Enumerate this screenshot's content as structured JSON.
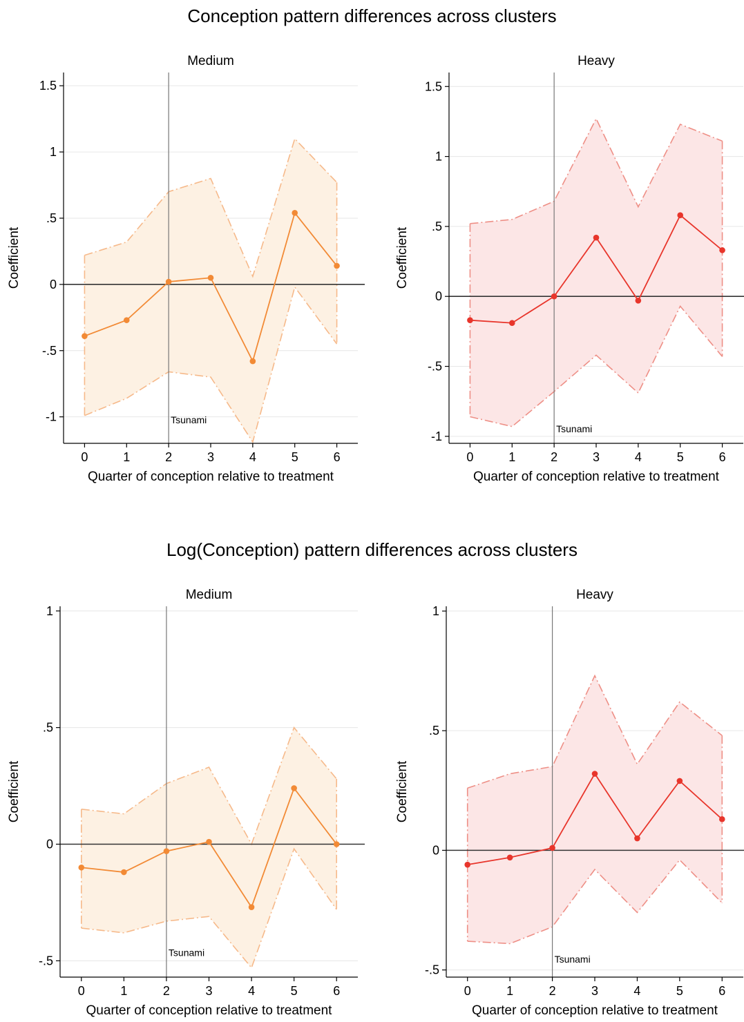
{
  "titles": {
    "top": "Conception pattern differences across clusters",
    "bottom": "Log(Conception) pattern differences across clusters"
  },
  "colors": {
    "medium_line": "#f28a35",
    "medium_fill": "#fdf1e3",
    "medium_bound": "#f6b98a",
    "heavy_line": "#e8352b",
    "heavy_fill": "#fce6e6",
    "heavy_bound": "#ee8f86",
    "zero_line": "#333333",
    "event_line": "#777777",
    "grid": "#e6e6e6"
  },
  "chart_data": [
    {
      "type": "line",
      "title": "Medium",
      "xlabel": "Quarter of conception relative to treatment",
      "ylabel": "Coefficient",
      "x": [
        0,
        1,
        2,
        3,
        4,
        5,
        6
      ],
      "y": [
        -0.39,
        -0.27,
        0.02,
        0.05,
        -0.58,
        0.54,
        0.14
      ],
      "ci_lower": [
        -0.99,
        -0.86,
        -0.66,
        -0.7,
        -1.19,
        -0.02,
        -0.45
      ],
      "ci_upper": [
        0.22,
        0.32,
        0.7,
        0.8,
        0.06,
        1.1,
        0.77
      ],
      "ylim": [
        -1.2,
        1.6
      ],
      "xlim": [
        -0.5,
        6.5
      ],
      "yticks": [
        -1,
        -0.5,
        0,
        0.5,
        1,
        1.5
      ],
      "ytick_labels": [
        "-1",
        "-.5",
        "0",
        ".5",
        "1",
        "1.5"
      ],
      "xtick_labels": [
        "0",
        "1",
        "2",
        "3",
        "4",
        "5",
        "6"
      ],
      "event_x": 2,
      "event_label": "Tsunami",
      "event_label_y": -1.05,
      "color_key": "medium",
      "grid": true
    },
    {
      "type": "line",
      "title": "Heavy",
      "xlabel": "Quarter of conception relative to treatment",
      "ylabel": "Coefficient",
      "x": [
        0,
        1,
        2,
        3,
        4,
        5,
        6
      ],
      "y": [
        -0.17,
        -0.19,
        0.0,
        0.42,
        -0.03,
        0.58,
        0.33
      ],
      "ci_lower": [
        -0.86,
        -0.93,
        -0.68,
        -0.42,
        -0.69,
        -0.07,
        -0.43
      ],
      "ci_upper": [
        0.52,
        0.55,
        0.68,
        1.27,
        0.64,
        1.23,
        1.11
      ],
      "ylim": [
        -1.05,
        1.6
      ],
      "xlim": [
        -0.5,
        6.5
      ],
      "yticks": [
        -1,
        -0.5,
        0,
        0.5,
        1,
        1.5
      ],
      "ytick_labels": [
        "-1",
        "-.5",
        "0",
        ".5",
        "1",
        "1.5"
      ],
      "xtick_labels": [
        "0",
        "1",
        "2",
        "3",
        "4",
        "5",
        "6"
      ],
      "event_x": 2,
      "event_label": "Tsunami",
      "event_label_y": -0.97,
      "color_key": "heavy",
      "grid": true
    },
    {
      "type": "line",
      "title": "Medium",
      "xlabel": "Quarter of conception relative to treatment",
      "ylabel": "Coefficient",
      "x": [
        0,
        1,
        2,
        3,
        4,
        5,
        6
      ],
      "y": [
        -0.1,
        -0.12,
        -0.03,
        0.01,
        -0.27,
        0.24,
        0.0
      ],
      "ci_lower": [
        -0.36,
        -0.38,
        -0.33,
        -0.31,
        -0.53,
        -0.02,
        -0.28
      ],
      "ci_upper": [
        0.15,
        0.13,
        0.26,
        0.33,
        0.0,
        0.5,
        0.28
      ],
      "ylim": [
        -0.57,
        1.02
      ],
      "xlim": [
        -0.5,
        6.5
      ],
      "yticks": [
        -0.5,
        0,
        0.5,
        1
      ],
      "ytick_labels": [
        "-.5",
        "0",
        ".5",
        "1"
      ],
      "xtick_labels": [
        "0",
        "1",
        "2",
        "3",
        "4",
        "5",
        "6"
      ],
      "event_x": 2,
      "event_label": "Tsunami",
      "event_label_y": -0.48,
      "color_key": "medium",
      "grid": true
    },
    {
      "type": "line",
      "title": "Heavy",
      "xlabel": "Quarter of conception relative to treatment",
      "ylabel": "Coefficient",
      "x": [
        0,
        1,
        2,
        3,
        4,
        5,
        6
      ],
      "y": [
        -0.06,
        -0.03,
        0.01,
        0.32,
        0.05,
        0.29,
        0.13
      ],
      "ci_lower": [
        -0.38,
        -0.39,
        -0.32,
        -0.08,
        -0.26,
        -0.04,
        -0.22
      ],
      "ci_upper": [
        0.26,
        0.32,
        0.35,
        0.73,
        0.36,
        0.62,
        0.48
      ],
      "ylim": [
        -0.53,
        1.02
      ],
      "xlim": [
        -0.5,
        6.5
      ],
      "yticks": [
        -0.5,
        0,
        0.5,
        1
      ],
      "ytick_labels": [
        "-.5",
        "0",
        ".5",
        "1"
      ],
      "xtick_labels": [
        "0",
        "1",
        "2",
        "3",
        "4",
        "5",
        "6"
      ],
      "event_x": 2,
      "event_label": "Tsunami",
      "event_label_y": -0.47,
      "color_key": "heavy",
      "grid": true
    }
  ]
}
